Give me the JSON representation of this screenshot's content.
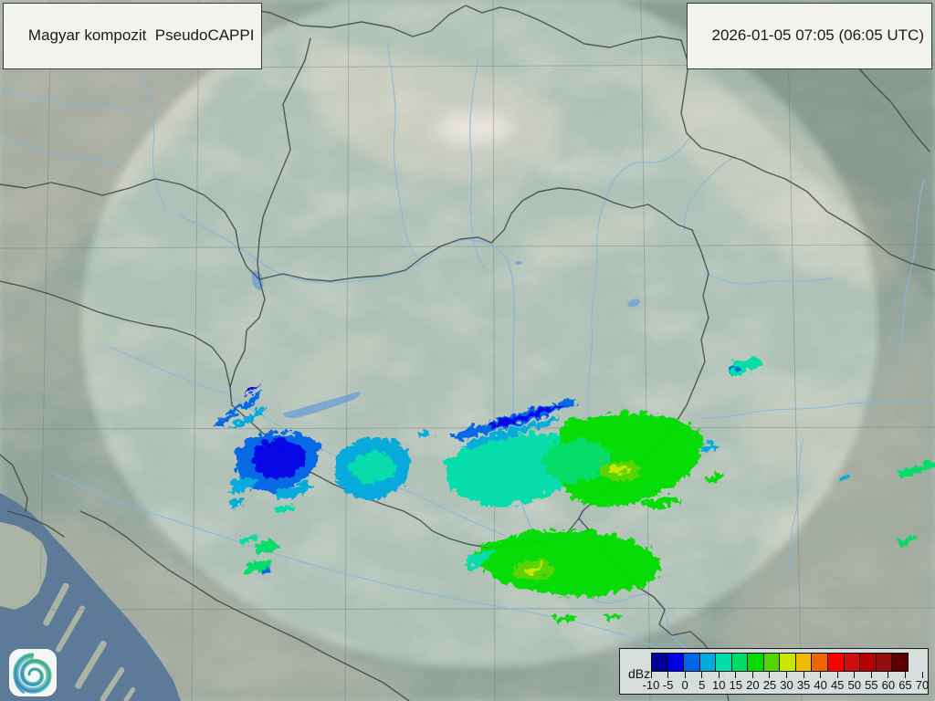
{
  "header": {
    "product_label": "Magyar kompozit  PseudoCAPPI",
    "timestamp": "2026-01-05 07:05 (06:05 UTC)"
  },
  "legend": {
    "unit_label": "dBz",
    "tick_labels": [
      "-10",
      "-5",
      "0",
      "5",
      "10",
      "15",
      "20",
      "25",
      "30",
      "35",
      "40",
      "45",
      "50",
      "55",
      "60",
      "65",
      "70"
    ],
    "colors": [
      "#000099",
      "#0000e6",
      "#0066e6",
      "#00aadd",
      "#00ddaa",
      "#00dd66",
      "#00dd00",
      "#55d400",
      "#c8e800",
      "#eebb00",
      "#ee6600",
      "#ff0000",
      "#cc0e0e",
      "#b40000",
      "#930f0f",
      "#5f0000"
    ],
    "cell_count": 16
  },
  "map": {
    "land_color": "#a6bab0",
    "mountain_color": "#d8d1c0",
    "sea_color": "#5d7b99",
    "island_color": "#a9b4a4",
    "lake_color": "#7ca8cf",
    "river_color": "#8ab6de",
    "border_color": "#3f4540",
    "coverage_outside_tint": "#5a6a60",
    "coverage_inside_tint": "#e6efe2"
  },
  "logo": {
    "icon": "spiral-swirl",
    "gradient": [
      "#2f7fc1",
      "#35a5a5",
      "#45b36a"
    ]
  }
}
